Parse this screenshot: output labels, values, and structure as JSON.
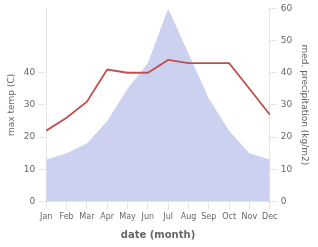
{
  "chart_data": {
    "type": "line",
    "xlabel": "date (month)",
    "ylabel": "max temp (C)",
    "y2label": "med. precipitation (kg/m2)",
    "categories": [
      "Jan",
      "Feb",
      "Mar",
      "Apr",
      "May",
      "Jun",
      "Jul",
      "Aug",
      "Sep",
      "Oct",
      "Nov",
      "Dec"
    ],
    "series": [
      {
        "type": "area",
        "color": "#b0b8e8",
        "axis": "y2",
        "values": [
          13,
          15,
          18,
          25,
          35,
          43,
          60,
          46,
          32,
          22,
          15,
          13
        ]
      },
      {
        "type": "line",
        "color": "#c0504d",
        "values": [
          22,
          26,
          31,
          41,
          40,
          40,
          44,
          43,
          43,
          43,
          35,
          27
        ]
      }
    ],
    "ylim": [
      0,
      60
    ],
    "yticks": [
      0,
      10,
      20,
      30,
      40
    ],
    "y2lim": [
      0,
      60
    ],
    "y2ticks": [
      0,
      10,
      20,
      30,
      40,
      50,
      60
    ],
    "grid": false
  }
}
